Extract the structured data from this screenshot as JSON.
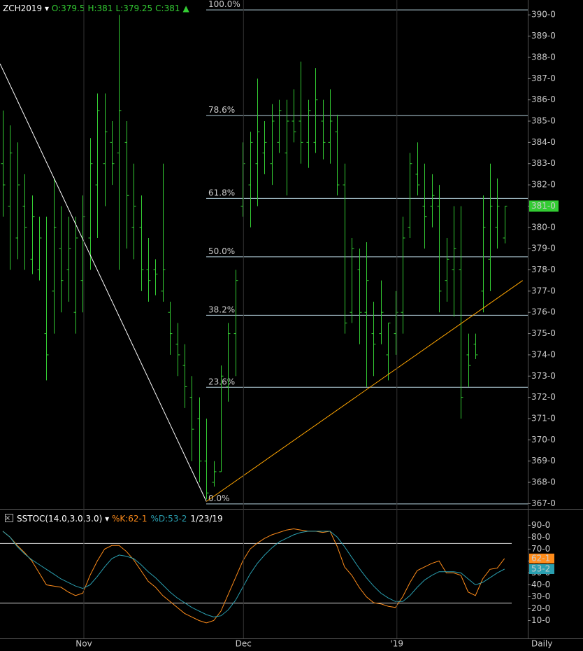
{
  "chart_data": [
    {
      "type": "ohlc",
      "symbol": "ZCH2019",
      "header_fields": [
        "O:379.5",
        "H:381",
        "L:379.25",
        "C:381"
      ],
      "color": "#33cc33",
      "xlim": [
        -0.385,
        72.2
      ],
      "ylim": [
        366.75,
        390.7
      ],
      "yticks": [
        {
          "value": 367,
          "label": "367-0"
        },
        {
          "value": 368,
          "label": "368-0"
        },
        {
          "value": 369,
          "label": "369-0"
        },
        {
          "value": 370,
          "label": "370-0"
        },
        {
          "value": 371,
          "label": "371-0"
        },
        {
          "value": 372,
          "label": "372-0"
        },
        {
          "value": 373,
          "label": "373-0"
        },
        {
          "value": 374,
          "label": "374-0"
        },
        {
          "value": 375,
          "label": "375-0"
        },
        {
          "value": 376,
          "label": "376-0"
        },
        {
          "value": 377,
          "label": "377-0"
        },
        {
          "value": 378,
          "label": "378-0"
        },
        {
          "value": 379,
          "label": "379-0"
        },
        {
          "value": 380,
          "label": "380-0"
        },
        {
          "value": 381,
          "label": "381-0"
        },
        {
          "value": 382,
          "label": "382-0"
        },
        {
          "value": 383,
          "label": "383-0"
        },
        {
          "value": 384,
          "label": "384-0"
        },
        {
          "value": 385,
          "label": "385-0"
        },
        {
          "value": 386,
          "label": "386-0"
        },
        {
          "value": 387,
          "label": "387-0"
        },
        {
          "value": 388,
          "label": "388-0"
        },
        {
          "value": 389,
          "label": "389-0"
        },
        {
          "value": 390,
          "label": "390-0"
        }
      ],
      "open": [
        383,
        381,
        379.5,
        381,
        378.5,
        378,
        375,
        377,
        379,
        378,
        376,
        377.5,
        379.5,
        382,
        383,
        384,
        383.5,
        384,
        380,
        380,
        378,
        378,
        377,
        376,
        374.5,
        373.5,
        372,
        371,
        369,
        368,
        368.5,
        372.5,
        375,
        381,
        382,
        383,
        383.5,
        383,
        384,
        383.5,
        385,
        385,
        384,
        384,
        385,
        384,
        384.5,
        382,
        376,
        378,
        376,
        375,
        375,
        374,
        375,
        376,
        380,
        382.5,
        381,
        381,
        381,
        377.5,
        378,
        378,
        374,
        374.5,
        377,
        378.5,
        380,
        379.5
      ],
      "high": [
        385.5,
        384.8,
        384,
        382.5,
        381.5,
        380.5,
        380.5,
        382.3,
        381,
        380.5,
        380.5,
        381.5,
        384.2,
        386.3,
        386.3,
        385,
        390,
        385,
        383,
        381.5,
        379.5,
        378.5,
        383,
        376.5,
        375.5,
        374.5,
        373,
        372,
        371,
        369,
        373.5,
        375.5,
        378,
        384,
        384.5,
        387,
        385,
        385.8,
        386,
        386,
        386.5,
        387.8,
        386,
        387.5,
        386,
        386.5,
        385.3,
        383,
        379.5,
        379,
        379.3,
        376.5,
        377.5,
        375.5,
        377,
        380.5,
        383.5,
        384,
        383,
        382.5,
        382,
        379.5,
        381,
        381,
        375,
        375,
        381.5,
        383,
        382.3,
        381
      ],
      "low": [
        380.5,
        378,
        378.5,
        378,
        377.8,
        377.5,
        372.8,
        375,
        376,
        376.5,
        375,
        376,
        378,
        379.5,
        381,
        382,
        378,
        379,
        378.5,
        377,
        376.5,
        376.8,
        376.5,
        374,
        373,
        371.5,
        369,
        368,
        367.2,
        367.8,
        368.5,
        371.8,
        373,
        380.5,
        380,
        381,
        382.5,
        382,
        383.5,
        381.5,
        384,
        383,
        382.8,
        383.5,
        383.2,
        383,
        381.5,
        375,
        375.5,
        374.5,
        372.5,
        373,
        374.5,
        372.8,
        374,
        375,
        379.5,
        381.5,
        379,
        380,
        376,
        376.5,
        375.8,
        371,
        372.5,
        373.8,
        376,
        377,
        379,
        379.25
      ],
      "close": [
        382,
        383.5,
        382,
        380,
        380.5,
        379.5,
        374,
        380,
        377.5,
        379,
        379.5,
        380.5,
        383,
        385.5,
        384.5,
        383,
        385.5,
        381.5,
        381,
        378,
        377.5,
        377.8,
        378,
        375,
        374,
        372.5,
        370.5,
        369,
        367.5,
        368.5,
        373,
        375,
        377.5,
        383,
        384,
        384.5,
        384,
        385,
        385.5,
        385,
        384.5,
        384,
        385.5,
        386,
        384,
        385,
        382,
        375.5,
        379,
        376,
        377.5,
        374.5,
        376,
        375.5,
        376,
        379.5,
        383,
        382,
        380.5,
        381.5,
        377,
        378.5,
        379,
        372,
        373.5,
        374,
        380,
        381,
        381,
        381
      ],
      "last_label": "381-0",
      "fib_levels": [
        {
          "label": "100.0%",
          "value": 390.25
        },
        {
          "label": "78.6%",
          "value": 385.28
        },
        {
          "label": "61.8%",
          "value": 381.38
        },
        {
          "label": "50.0%",
          "value": 378.63
        },
        {
          "label": "38.2%",
          "value": 375.88
        },
        {
          "label": "23.6%",
          "value": 372.49
        },
        {
          "label": "0.0%",
          "value": 367
        }
      ],
      "trendlines": [
        {
          "color": "#ffffff",
          "x": [
            -0.38,
            28
          ],
          "y": [
            387.7,
            367.1
          ]
        },
        {
          "color": "#ffa500",
          "x": [
            28,
            71.5
          ],
          "y": [
            367.1,
            377.5
          ]
        }
      ]
    },
    {
      "type": "line",
      "title": "SSTOC(14.0,3.0,3.0)",
      "date": "1/23/19",
      "xlim": [
        -0.385,
        72.2
      ],
      "ylim": [
        -5,
        102
      ],
      "xticks": [
        {
          "value": 11.15,
          "label": "Nov"
        },
        {
          "value": 33.1,
          "label": "Dec"
        },
        {
          "value": 54.2,
          "label": "'19"
        }
      ],
      "period_label": "Daily",
      "yticks": [
        {
          "value": 10,
          "label": "10-0"
        },
        {
          "value": 20,
          "label": "20-0"
        },
        {
          "value": 30,
          "label": "30-0"
        },
        {
          "value": 40,
          "label": "40-0"
        },
        {
          "value": 50,
          "label": "50-0"
        },
        {
          "value": 60,
          "label": "60-0"
        },
        {
          "value": 70,
          "label": "70-0"
        },
        {
          "value": 80,
          "label": "80-0"
        },
        {
          "value": 90,
          "label": "90-0"
        }
      ],
      "bands": [
        75,
        25
      ],
      "grid": true,
      "series": [
        {
          "name": "%K",
          "legend_label": "%K:62-1",
          "last_label": "62-1",
          "color": "#ff8c1a",
          "values": [
            85,
            80,
            73,
            67,
            60,
            50,
            40,
            39,
            38,
            34,
            31,
            33,
            48,
            60,
            70,
            73,
            73,
            68,
            61,
            52,
            43,
            38,
            31,
            26,
            21,
            16,
            13,
            10,
            8,
            10,
            18,
            32,
            46,
            60,
            70,
            75,
            79,
            82,
            84,
            86,
            87,
            86,
            85,
            85,
            84,
            85,
            72,
            55,
            48,
            38,
            30,
            25,
            24,
            22,
            21,
            30,
            42,
            52,
            55,
            58,
            60,
            50,
            50,
            48,
            34,
            31,
            45,
            53,
            54,
            62.1
          ]
        },
        {
          "name": "%D",
          "legend_label": "%D:53-2",
          "last_label": "53-2",
          "color": "#2a9fb0",
          "values": [
            85,
            80,
            72,
            66,
            61,
            57,
            53,
            49,
            45,
            42,
            39,
            37,
            40,
            47,
            55,
            62,
            65,
            64,
            62,
            57,
            51,
            46,
            40,
            34,
            29,
            25,
            21,
            18,
            15,
            13,
            14,
            19,
            27,
            38,
            49,
            58,
            65,
            71,
            76,
            79,
            82,
            84,
            85,
            85,
            85,
            85,
            80,
            72,
            63,
            54,
            46,
            39,
            33,
            29,
            26,
            26,
            31,
            38,
            44,
            48,
            51,
            51,
            51,
            50,
            45,
            40,
            42,
            46,
            50,
            53.2
          ]
        }
      ]
    }
  ]
}
